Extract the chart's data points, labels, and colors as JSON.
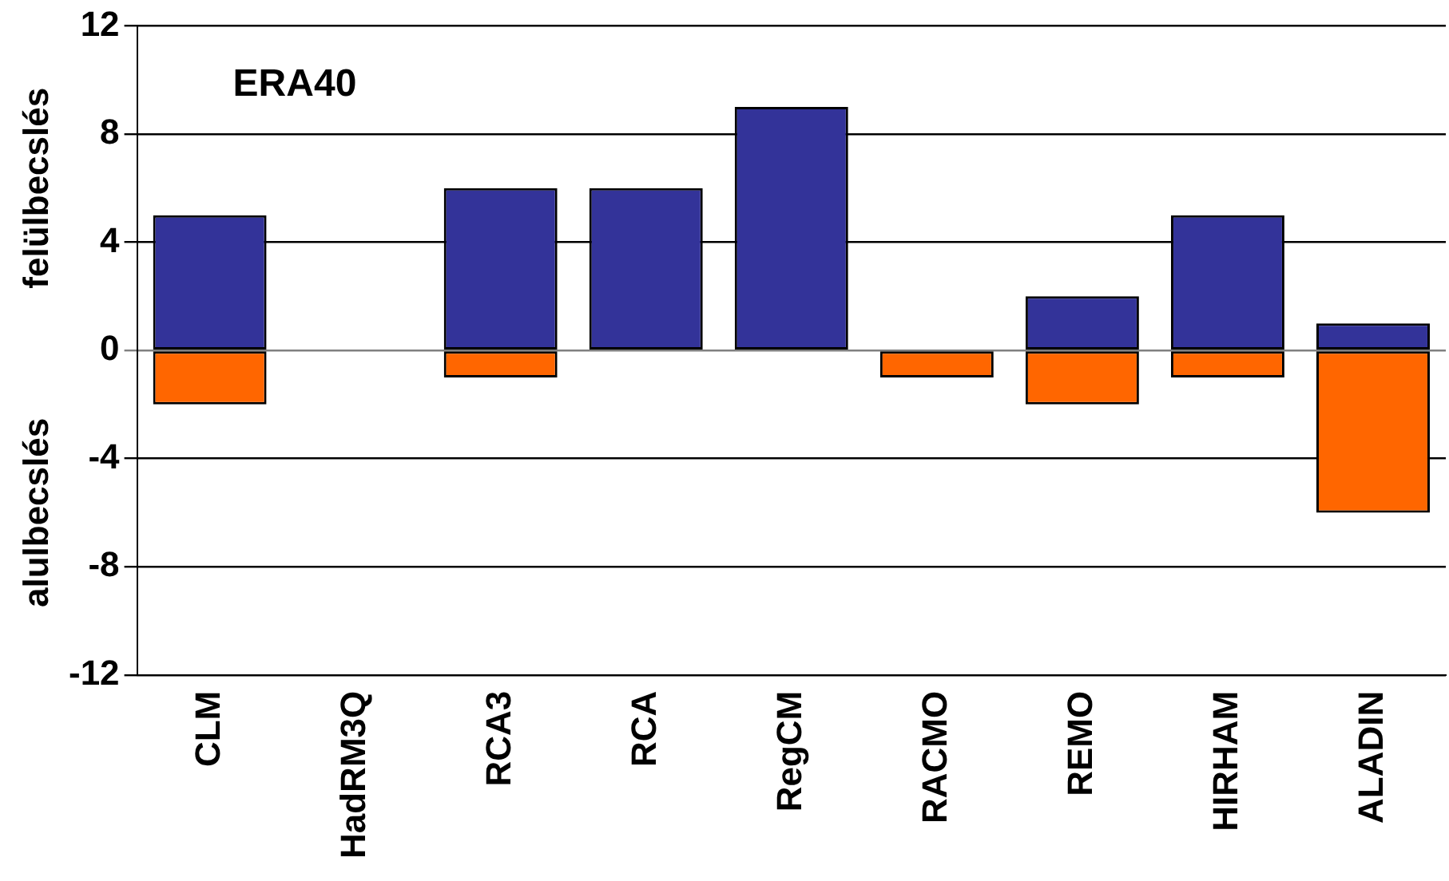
{
  "chart_data": {
    "type": "bar",
    "title": "ERA40",
    "ylabel": "felülbecslés",
    "annotations": [
      "alulbecslés"
    ],
    "categories": [
      "CLM",
      "HadRM3Q",
      "RCA3",
      "RCA",
      "RegCM",
      "RACMO",
      "REMO",
      "HIRHAM",
      "ALADIN"
    ],
    "series": [
      {
        "color": "#333399",
        "values": [
          5,
          0,
          6,
          6,
          9,
          0,
          2,
          5,
          1
        ]
      },
      {
        "color": "#ff6600",
        "values": [
          -2,
          0,
          -1,
          0,
          0,
          -1,
          -2,
          -1,
          -6
        ]
      }
    ],
    "stacked": true,
    "ylim": [
      -12,
      12
    ],
    "yticks": [
      -12,
      -8,
      -4,
      0,
      4,
      8,
      12
    ],
    "grid": "y",
    "legend": false
  }
}
